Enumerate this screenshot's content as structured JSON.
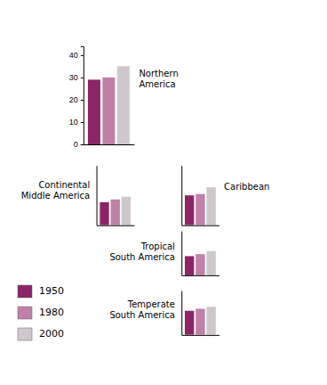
{
  "chart_data": [
    {
      "type": "bar",
      "title": "Northern\nAmerica",
      "categories": [
        null
      ],
      "series": [
        {
          "name": "1950",
          "color": "#8b2566",
          "values": [
            29
          ]
        },
        {
          "name": "1980",
          "color": "#c080a8",
          "values": [
            30
          ]
        },
        {
          "name": "2000",
          "color": "#cec8cc",
          "values": [
            35
          ]
        }
      ],
      "ylim": [
        0,
        44
      ],
      "yticks": [
        0,
        10,
        20,
        30,
        40
      ],
      "tick_labels": "y",
      "legend": "lower left"
    },
    {
      "type": "bar",
      "title": "Continental\nMiddle America",
      "categories": [
        null
      ],
      "series": [
        {
          "color": "#8b2566",
          "values": [
            17
          ]
        },
        {
          "color": "#c080a8",
          "values": [
            19
          ]
        },
        {
          "color": "#cec8cc",
          "values": [
            21
          ]
        }
      ],
      "ylim": [
        0,
        44
      ],
      "tick_labels": false
    },
    {
      "type": "bar",
      "title": "Caribbean",
      "categories": [
        null
      ],
      "series": [
        {
          "color": "#8b2566",
          "values": [
            22
          ]
        },
        {
          "color": "#c080a8",
          "values": [
            23
          ]
        },
        {
          "color": "#cec8cc",
          "values": [
            28
          ]
        }
      ],
      "ylim": [
        0,
        44
      ],
      "tick_labels": false
    },
    {
      "type": "bar",
      "title": "Tropical\nSouth America",
      "categories": [
        null
      ],
      "series": [
        {
          "color": "#8b2566",
          "values": [
            19
          ]
        },
        {
          "color": "#c080a8",
          "values": [
            21
          ]
        },
        {
          "color": "#cec8cc",
          "values": [
            24
          ]
        }
      ],
      "ylim": [
        0,
        44
      ],
      "tick_labels": false
    },
    {
      "type": "bar",
      "title": "Temperate\nSouth America",
      "categories": [
        null
      ],
      "series": [
        {
          "color": "#8b2566",
          "values": [
            24
          ]
        },
        {
          "color": "#c080a8",
          "values": [
            26
          ]
        },
        {
          "color": "#cec8cc",
          "values": [
            28
          ]
        }
      ],
      "ylim": [
        0,
        44
      ],
      "tick_labels": false
    }
  ]
}
